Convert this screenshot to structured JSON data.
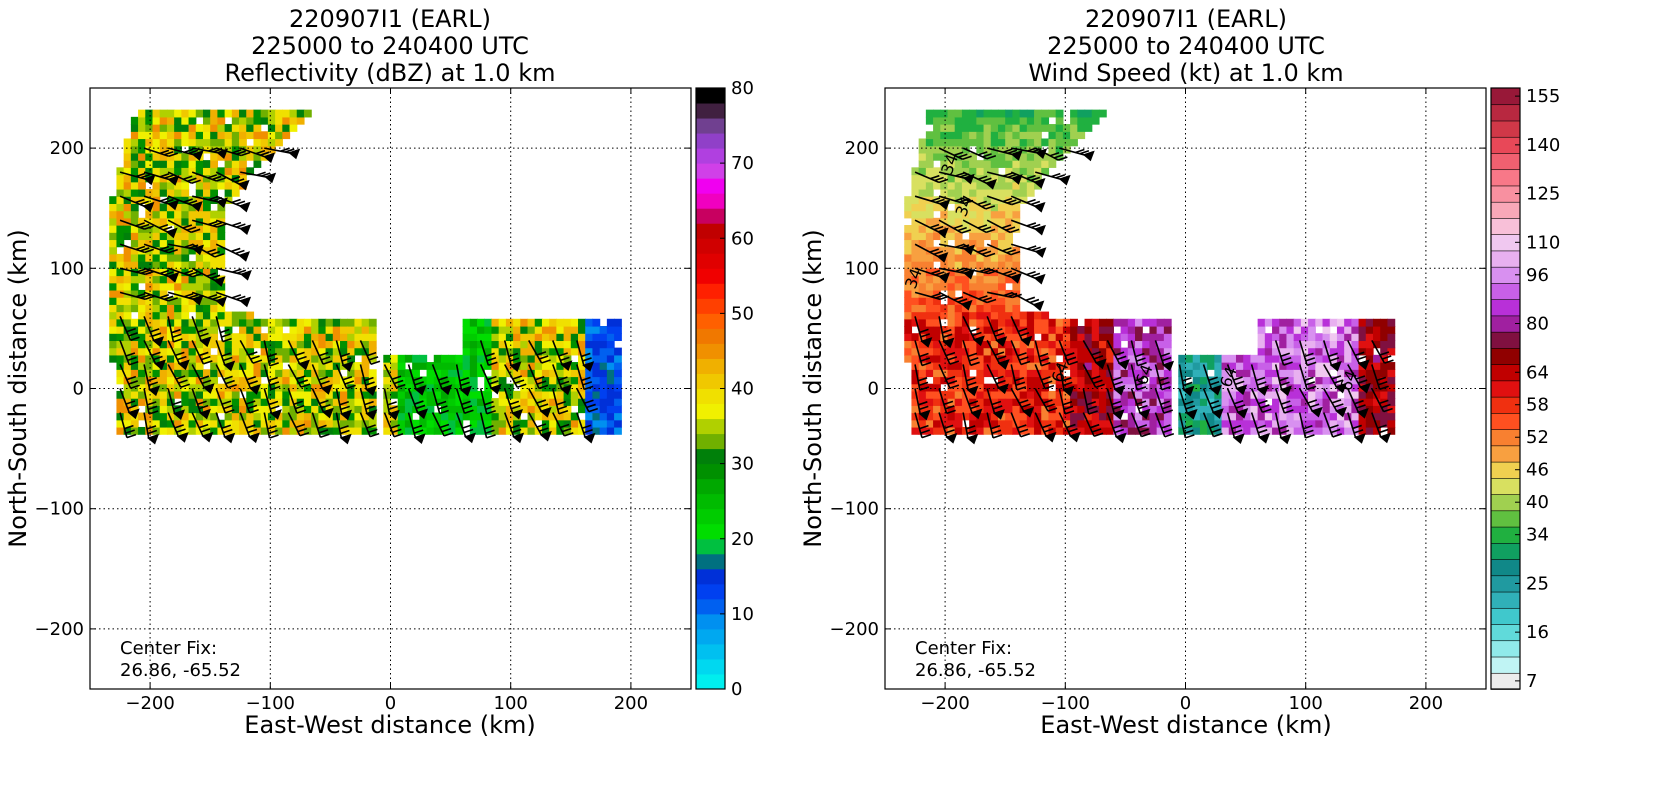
{
  "chart_data": [
    {
      "type": "heatmap",
      "panel": "left",
      "title_lines": [
        "220907I1 (EARL)",
        "225000 to 240400 UTC",
        "Reflectivity (dBZ) at 1.0 km"
      ],
      "xlabel": "East-West distance (km)",
      "ylabel": "North-South distance (km)",
      "xlim": [
        -250,
        250
      ],
      "ylim": [
        -250,
        250
      ],
      "xticks": [
        -200,
        -100,
        0,
        100,
        200
      ],
      "yticks": [
        -200,
        -100,
        0,
        100,
        200
      ],
      "xtick_labels": [
        "−200",
        "−100",
        "0",
        "100",
        "200"
      ],
      "ytick_labels": [
        "−200",
        "−100",
        "0",
        "100",
        "200"
      ],
      "grid": true,
      "annotation_lines": [
        "Center Fix:",
        "26.86, -65.52"
      ],
      "colorbar": {
        "min": 0,
        "max": 80,
        "tick_values": [
          0,
          10,
          20,
          30,
          40,
          50,
          60,
          70,
          80
        ],
        "tick_labels": [
          "0",
          "10",
          "20",
          "30",
          "40",
          "50",
          "60",
          "70",
          "80"
        ],
        "colors": [
          "#00eeee",
          "#00d8f0",
          "#00c0f0",
          "#00a8f0",
          "#0090f0",
          "#0060f0",
          "#0040f0",
          "#0030d8",
          "#007080",
          "#00c040",
          "#00dd00",
          "#00cc00",
          "#00bb00",
          "#00a800",
          "#009000",
          "#00800a",
          "#70b000",
          "#b0d000",
          "#f0f000",
          "#f0e000",
          "#f0c800",
          "#f0b000",
          "#f09000",
          "#f07800",
          "#ff6000",
          "#ff4000",
          "#ff2000",
          "#f00000",
          "#e00000",
          "#d00000",
          "#c00000",
          "#c80060",
          "#f000c0",
          "#f000f0",
          "#d040e8",
          "#b040e0",
          "#9040c8",
          "#704090",
          "#402040",
          "#000000"
        ]
      },
      "field_description_regions": [
        {
          "shape": "arc",
          "x_range": [
            -230,
            -130
          ],
          "y_range": [
            10,
            225
          ],
          "value_range_dbz": [
            22,
            38
          ]
        },
        {
          "shape": "band",
          "x_range": [
            -230,
            -10
          ],
          "y_range": [
            -45,
            50
          ],
          "value_range_dbz": [
            22,
            38
          ]
        },
        {
          "shape": "band",
          "x_range": [
            -10,
            190
          ],
          "y_range": [
            -45,
            55
          ],
          "value_range_dbz": [
            5,
            38
          ]
        }
      ]
    },
    {
      "type": "heatmap",
      "panel": "right",
      "title_lines": [
        "220907I1 (EARL)",
        "225000 to 240400 UTC",
        "Wind Speed (kt) at 1.0 km"
      ],
      "xlabel": "East-West distance (km)",
      "ylabel": "North-South distance (km)",
      "xlim": [
        -250,
        250
      ],
      "ylim": [
        -250,
        250
      ],
      "xticks": [
        -200,
        -100,
        0,
        100,
        200
      ],
      "yticks": [
        -200,
        -100,
        0,
        100,
        200
      ],
      "xtick_labels": [
        "−200",
        "−100",
        "0",
        "100",
        "200"
      ],
      "ytick_labels": [
        "−200",
        "−100",
        "0",
        "100",
        "200"
      ],
      "grid": true,
      "annotation_lines": [
        "Center Fix:",
        "26.86, -65.52"
      ],
      "contour_labels": [
        "34",
        "34",
        "34",
        "64",
        "64",
        "64",
        "64"
      ],
      "colorbar": {
        "tick_labels": [
          "7",
          "16",
          "25",
          "34",
          "40",
          "46",
          "52",
          "58",
          "64",
          "80",
          "96",
          "110",
          "125",
          "140",
          "155"
        ],
        "colors": [
          "#ececec",
          "#c0f4f4",
          "#90eaea",
          "#60dada",
          "#40c8cc",
          "#30b0b8",
          "#209aa0",
          "#108888",
          "#10a060",
          "#20b040",
          "#60c040",
          "#a0d050",
          "#d8e060",
          "#f0d050",
          "#f8a040",
          "#f88030",
          "#ff5020",
          "#f03010",
          "#e01010",
          "#c00000",
          "#900000",
          "#801040",
          "#a020a0",
          "#b830d8",
          "#c860e8",
          "#d890f0",
          "#e8b0f0",
          "#f0c8f0",
          "#f8c0d8",
          "#f8a8b8",
          "#f890a0",
          "#f87888",
          "#f06070",
          "#e84858",
          "#d03848",
          "#b82840",
          "#981838"
        ]
      },
      "field_description_regions": [
        {
          "shape": "arc",
          "x_range": [
            -230,
            -130
          ],
          "y_range": [
            10,
            225
          ],
          "value_range_kt": [
            30,
            50
          ]
        },
        {
          "shape": "band",
          "x_range": [
            -230,
            -10
          ],
          "y_range": [
            -45,
            50
          ],
          "value_range_kt": [
            46,
            80
          ]
        },
        {
          "shape": "band",
          "x_range": [
            -10,
            175
          ],
          "y_range": [
            -45,
            55
          ],
          "value_range_kt": [
            16,
            100
          ]
        }
      ]
    }
  ]
}
